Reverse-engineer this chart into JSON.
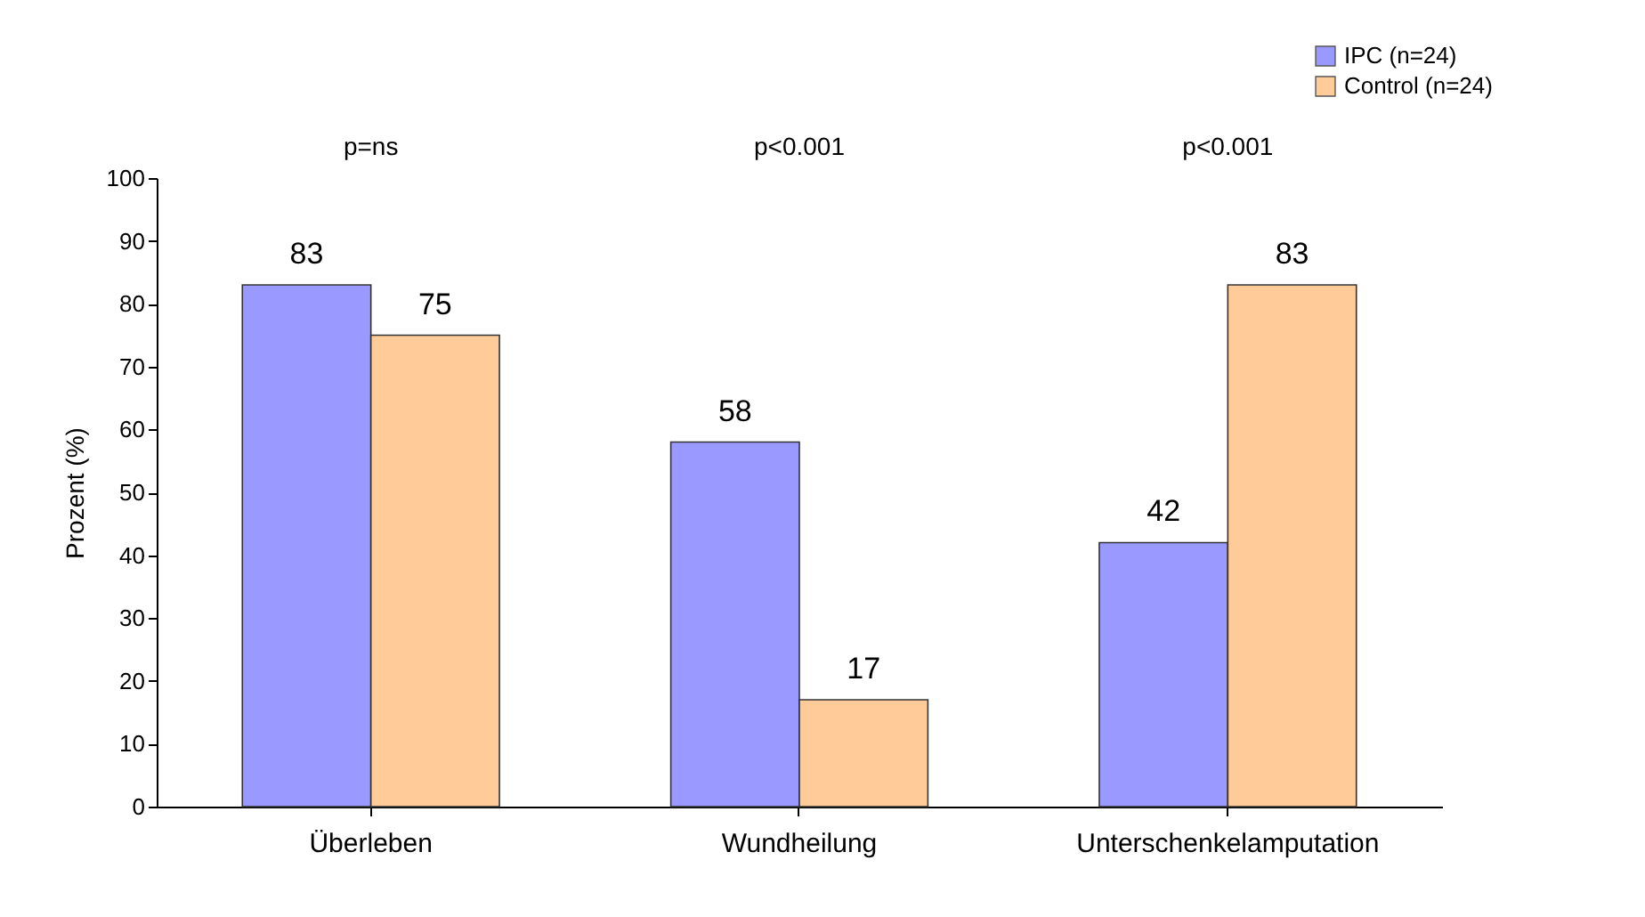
{
  "chart_data": {
    "type": "bar",
    "ylabel": "Prozent (%)",
    "categories": [
      "Überleben",
      "Wundheilung",
      "Unterschenkelamputation"
    ],
    "series": [
      {
        "name": "IPC (n=24)",
        "color": "#9999ff",
        "values": [
          83,
          58,
          42
        ]
      },
      {
        "name": "Control (n=24)",
        "color": "#ffcc99",
        "values": [
          75,
          17,
          83
        ]
      }
    ],
    "ylim": [
      0,
      100
    ],
    "yticks": [
      0,
      10,
      20,
      30,
      40,
      50,
      60,
      70,
      80,
      90,
      100
    ],
    "data_labels": true,
    "grid": false,
    "legend": "top right",
    "annotations": [
      "p=ns",
      "p<0.001",
      "p<0.001"
    ]
  }
}
